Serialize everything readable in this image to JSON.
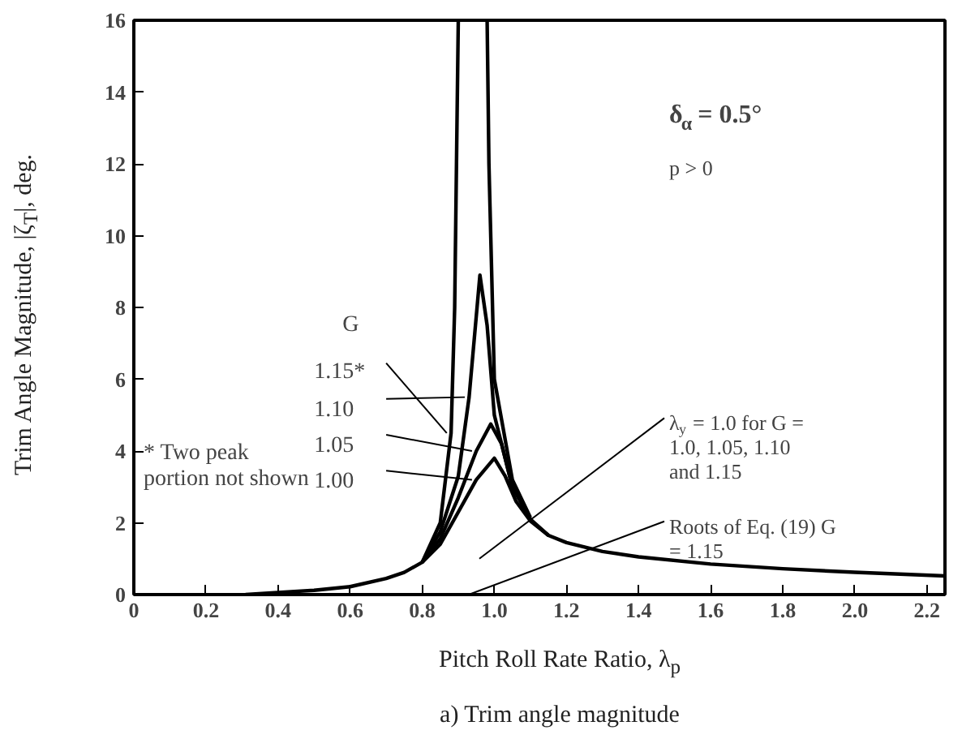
{
  "chart_data": {
    "type": "line",
    "xlabel": "Pitch Roll Rate Ratio, λ$_{p}$",
    "ylabel": "Trim Angle Magnitude, |ζ$_{T}$|, deg.",
    "legend_title": "G",
    "xlim": [
      0,
      2.25
    ],
    "ylim": [
      0,
      16
    ],
    "xticks": [
      0,
      0.2,
      0.4,
      0.6,
      0.8,
      {
        "value": 1,
        "label": "1.0"
      },
      1.2,
      1.4,
      1.6,
      1.8,
      {
        "value": 2,
        "label": "2.0"
      },
      2.2
    ],
    "yticks": [
      0,
      2,
      4,
      6,
      8,
      10,
      12,
      14,
      16
    ],
    "grid": false,
    "legend": "left",
    "marker": "none",
    "line_style": "solid",
    "series": [
      {
        "name": "1.15*",
        "color": "#000000",
        "x": [
          0.8,
          0.85,
          0.88,
          0.89,
          0.9,
          0.94,
          0.98,
          0.985,
          1.0,
          1.05,
          1.1
        ],
        "values": [
          0.9,
          2.0,
          4.5,
          8,
          16,
          null,
          16,
          12,
          6,
          3.2,
          2.15
        ]
      },
      {
        "name": "1.10",
        "color": "#000000",
        "x": [
          0.8,
          0.85,
          0.9,
          0.93,
          0.96,
          0.98,
          1.0,
          1.05,
          1.1
        ],
        "values": [
          0.9,
          1.75,
          3.3,
          5.5,
          8.9,
          7.5,
          5.0,
          3.0,
          2.1
        ]
      },
      {
        "name": "1.05",
        "color": "#000000",
        "x": [
          0.8,
          0.85,
          0.9,
          0.95,
          0.99,
          1.02,
          1.05,
          1.1,
          1.15
        ],
        "values": [
          0.9,
          1.55,
          2.7,
          4.0,
          4.75,
          4.2,
          3.0,
          2.1,
          1.65
        ]
      },
      {
        "name": "1.00",
        "color": "#000000",
        "x": [
          0.31,
          0.4,
          0.5,
          0.6,
          0.7,
          0.75,
          0.8,
          0.85,
          0.9,
          0.95,
          1.0,
          1.03,
          1.06,
          1.1,
          1.15,
          1.2,
          1.3,
          1.4,
          1.6,
          1.8,
          2.0,
          2.25
        ],
        "values": [
          0,
          0.06,
          0.12,
          0.22,
          0.45,
          0.62,
          0.9,
          1.4,
          2.3,
          3.2,
          3.8,
          3.3,
          2.6,
          2.05,
          1.65,
          1.45,
          1.2,
          1.05,
          0.85,
          0.72,
          0.62,
          0.52
        ]
      }
    ],
    "annotations": [
      "δ$_{α}$ = 0.5°",
      "p > 0",
      "* Two peak portion not shown",
      "λ$_{y}$ = 1.0 for G = 1.0, 1.05, 1.10 and 1.15",
      "Roots of Eq. (19) G = 1.15",
      "a) Trim angle magnitude"
    ]
  }
}
